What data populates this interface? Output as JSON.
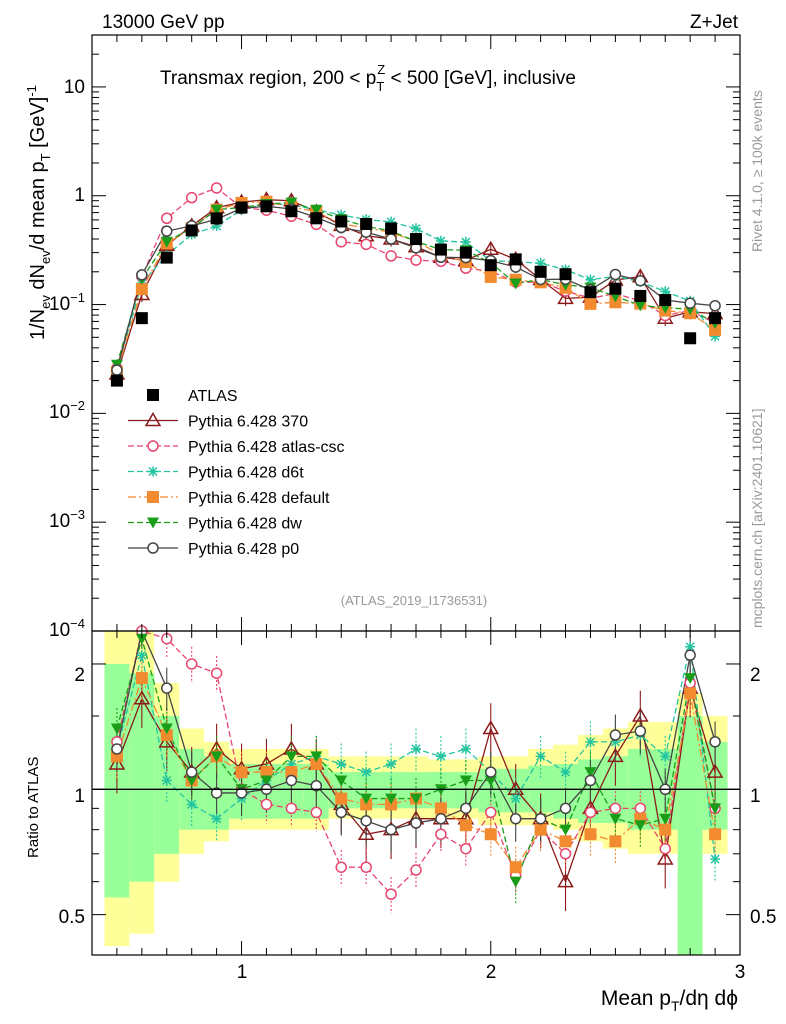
{
  "header": {
    "left": "13000 GeV pp",
    "right": "Z+Jet",
    "panel_title": "Transmax region, 200 < p",
    "panel_title_sup": "Z",
    "panel_title_sub": "T",
    "panel_title_end": " < 500 [GeV], inclusive",
    "analysis_id": "(ATLAS_2019_I1736531)"
  },
  "side_text": {
    "rivet": "Rivet 4.1.0, ≥ 100k events",
    "mcplots": "mcplots.cern.ch [arXiv:2401.10621]"
  },
  "axes": {
    "ylabel_main": "1/N_ev dN_ev/d mean p_T [GeV]^-1",
    "ylabel_ratio": "Ratio to ATLAS",
    "xlabel": "Mean p_T/dη dϕ",
    "x_ticks": [
      "1",
      "2",
      "3"
    ],
    "y_ticks_main": [
      "10^-4",
      "10^-3",
      "10^-2",
      "10^-1",
      "1",
      "10"
    ],
    "y_ticks_ratio": [
      "0.5",
      "1",
      "2"
    ]
  },
  "colors": {
    "atlas": "#000000",
    "p370": "#8b1a1a",
    "atlascsc": "#e8456e",
    "d6t": "#23c4a0",
    "default": "#f28b30",
    "dw": "#1a9e1a",
    "p0": "#444444",
    "band_inner": "#99ff99",
    "band_outer": "#ffff99"
  },
  "chart_data": {
    "type": "scatter",
    "title": "Transmax region, 200 < pT^Z < 500 [GeV], inclusive",
    "xlabel": "Mean p_T/dη dϕ",
    "ylabel": "1/N_ev dN_ev/d mean p_T [GeV]^-1",
    "ratio_ylabel": "Ratio to ATLAS",
    "xlim": [
      0.4,
      3.0
    ],
    "ylim_main": [
      0.0001,
      30
    ],
    "ylim_ratio": [
      0.4,
      2.4
    ],
    "yscale_main": "log",
    "yscale_ratio": "log",
    "legend_placement": "middle-left",
    "x": [
      0.5,
      0.6,
      0.7,
      0.8,
      0.9,
      1.0,
      1.1,
      1.2,
      1.3,
      1.4,
      1.5,
      1.6,
      1.7,
      1.8,
      1.9,
      2.0,
      2.1,
      2.2,
      2.3,
      2.4,
      2.5,
      2.6,
      2.7,
      2.8,
      2.9
    ],
    "reference": {
      "name": "ATLAS",
      "values": [
        0.02,
        0.075,
        0.27,
        0.48,
        0.62,
        0.78,
        0.8,
        0.72,
        0.62,
        0.58,
        0.55,
        0.5,
        0.4,
        0.32,
        0.3,
        0.23,
        0.26,
        0.2,
        0.19,
        0.13,
        0.14,
        0.12,
        0.11,
        0.049,
        0.075
      ],
      "band_inner": [
        [
          0.55,
          2.0
        ],
        [
          0.6,
          1.9
        ],
        [
          0.7,
          1.5
        ],
        [
          0.8,
          1.25
        ],
        [
          0.8,
          1.2
        ],
        [
          0.85,
          1.15
        ],
        [
          0.85,
          1.15
        ],
        [
          0.85,
          1.15
        ],
        [
          0.85,
          1.15
        ],
        [
          0.9,
          1.1
        ],
        [
          0.9,
          1.1
        ],
        [
          0.9,
          1.1
        ],
        [
          0.9,
          1.1
        ],
        [
          0.9,
          1.1
        ],
        [
          0.9,
          1.1
        ],
        [
          0.88,
          1.12
        ],
        [
          0.88,
          1.12
        ],
        [
          0.88,
          1.14
        ],
        [
          0.85,
          1.15
        ],
        [
          0.83,
          1.18
        ],
        [
          0.83,
          1.2
        ],
        [
          0.8,
          1.25
        ],
        [
          0.8,
          1.25
        ],
        [
          0.4,
          1.5
        ],
        [
          0.8,
          1.3
        ]
      ],
      "band_outer": [
        [
          0.42,
          2.4
        ],
        [
          0.45,
          2.4
        ],
        [
          0.6,
          1.8
        ],
        [
          0.7,
          1.4
        ],
        [
          0.75,
          1.3
        ],
        [
          0.8,
          1.25
        ],
        [
          0.8,
          1.25
        ],
        [
          0.8,
          1.25
        ],
        [
          0.8,
          1.25
        ],
        [
          0.85,
          1.2
        ],
        [
          0.85,
          1.2
        ],
        [
          0.85,
          1.2
        ],
        [
          0.85,
          1.2
        ],
        [
          0.85,
          1.18
        ],
        [
          0.85,
          1.18
        ],
        [
          0.82,
          1.2
        ],
        [
          0.82,
          1.2
        ],
        [
          0.82,
          1.25
        ],
        [
          0.8,
          1.28
        ],
        [
          0.75,
          1.35
        ],
        [
          0.72,
          1.4
        ],
        [
          0.7,
          1.45
        ],
        [
          0.7,
          1.45
        ],
        [
          0.4,
          1.7
        ],
        [
          0.7,
          1.5
        ]
      ]
    },
    "series": [
      {
        "name": "Pythia 6.428 370",
        "key": "p370",
        "marker": "triangle-open",
        "dash": "",
        "relerr": 0.15,
        "ratio": [
          1.15,
          1.65,
          1.3,
          1.1,
          1.25,
          1.12,
          1.15,
          1.25,
          1.15,
          0.92,
          0.78,
          0.8,
          0.85,
          0.85,
          0.85,
          1.4,
          1.0,
          0.85,
          0.6,
          0.9,
          1.2,
          1.5,
          0.68,
          1.75,
          1.1
        ]
      },
      {
        "name": "Pythia 6.428 atlas-csc",
        "key": "atlascsc",
        "marker": "circle-open",
        "dash": "6,3",
        "relerr": 0.1,
        "ratio": [
          1.3,
          2.4,
          2.3,
          2.0,
          1.9,
          1.0,
          0.92,
          0.9,
          0.88,
          0.65,
          0.65,
          0.56,
          0.64,
          0.78,
          0.72,
          0.88,
          0.62,
          0.8,
          0.7,
          0.88,
          0.9,
          0.9,
          0.72,
          1.8,
          0.9
        ]
      },
      {
        "name": "Pythia 6.428 d6t",
        "key": "d6t",
        "marker": "star",
        "dash": "6,3",
        "relerr": 0.12,
        "ratio": [
          1.25,
          2.1,
          1.05,
          0.92,
          0.85,
          0.95,
          1.05,
          1.15,
          1.2,
          1.15,
          1.1,
          1.15,
          1.25,
          1.2,
          1.25,
          1.1,
          0.95,
          1.2,
          1.1,
          1.3,
          1.3,
          1.35,
          1.2,
          2.2,
          0.68
        ]
      },
      {
        "name": "Pythia 6.428 default",
        "key": "default",
        "marker": "square",
        "dash": "8,3,2,3",
        "relerr": 0.12,
        "ratio": [
          1.2,
          1.85,
          1.35,
          1.05,
          1.2,
          1.1,
          1.1,
          1.1,
          1.15,
          0.95,
          0.92,
          0.92,
          0.95,
          0.9,
          0.82,
          0.78,
          0.65,
          0.8,
          0.75,
          0.78,
          0.75,
          0.85,
          0.8,
          1.7,
          0.78
        ]
      },
      {
        "name": "Pythia 6.428 dw",
        "key": "dw",
        "marker": "triangle-down",
        "dash": "6,3",
        "relerr": 0.12,
        "ratio": [
          1.4,
          2.3,
          1.4,
          1.05,
          1.2,
          1.0,
          1.05,
          1.2,
          1.2,
          1.05,
          0.95,
          0.95,
          0.95,
          1.0,
          1.05,
          1.05,
          0.6,
          0.85,
          0.8,
          1.1,
          0.85,
          0.82,
          0.85,
          1.85,
          0.9
        ]
      },
      {
        "name": "Pythia 6.428 p0",
        "key": "p0",
        "marker": "circle-open",
        "dash": "",
        "relerr": 0.12,
        "ratio": [
          1.25,
          2.5,
          1.75,
          1.1,
          0.98,
          0.98,
          1.0,
          1.05,
          1.02,
          0.88,
          0.84,
          0.8,
          0.83,
          0.85,
          0.9,
          1.1,
          0.85,
          0.85,
          0.9,
          1.05,
          1.35,
          1.38,
          1.0,
          2.1,
          1.3
        ]
      }
    ]
  }
}
